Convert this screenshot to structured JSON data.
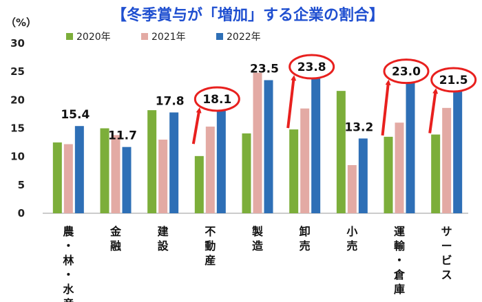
{
  "chart_data": {
    "type": "bar",
    "title": "【冬季賞与が「増加」する企業の割合】",
    "y_unit": "（%）",
    "ylim": [
      0,
      30
    ],
    "yticks": [
      0,
      5,
      10,
      15,
      20,
      25,
      30
    ],
    "grid": false,
    "legend_position": "top",
    "categories": [
      "農・林・水産",
      "金融",
      "建設",
      "不動産",
      "製造",
      "卸売",
      "小売",
      "運輸・倉庫",
      "サービス"
    ],
    "series": [
      {
        "name": "2020年",
        "color": "#7cae3a",
        "values": [
          12.5,
          15.0,
          18.2,
          10.1,
          14.1,
          14.8,
          21.6,
          13.5,
          13.9
        ]
      },
      {
        "name": "2021年",
        "color": "#e3aaa4",
        "values": [
          12.2,
          13.8,
          13.0,
          15.3,
          24.8,
          18.5,
          8.5,
          16.0,
          18.6
        ]
      },
      {
        "name": "2022年",
        "color": "#2e6fb6",
        "values": [
          15.4,
          11.7,
          17.8,
          18.1,
          23.5,
          23.8,
          13.2,
          23.0,
          21.5
        ]
      }
    ],
    "data_labels": [
      "15.4",
      "11.7",
      "17.8",
      "18.1",
      "23.5",
      "23.8",
      "13.2",
      "23.0",
      "21.5"
    ],
    "highlighted_categories": [
      "不動産",
      "卸売",
      "運輸・倉庫",
      "サービス"
    ],
    "highlight_color": "#e8201e"
  }
}
